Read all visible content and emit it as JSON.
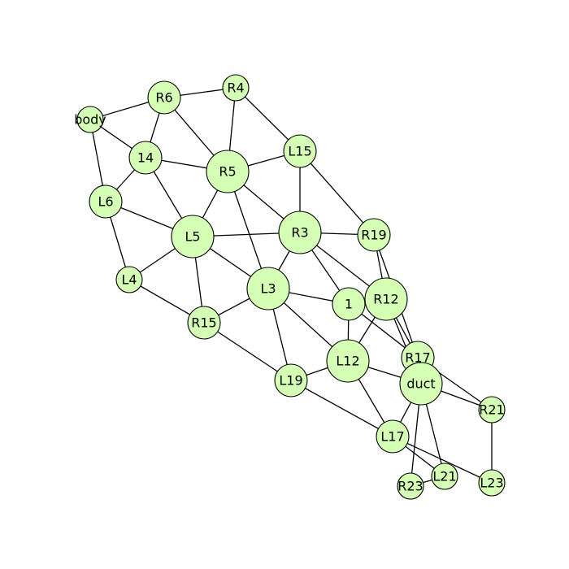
{
  "graph": {
    "node_color": "#d5ffb4",
    "edge_color": "#000000",
    "nodes": [
      {
        "id": "body",
        "label": "body",
        "size": "small"
      },
      {
        "id": "R6",
        "label": "R6",
        "size": "medium"
      },
      {
        "id": "R4",
        "label": "R4",
        "size": "small"
      },
      {
        "id": "14",
        "label": "14",
        "size": "medium"
      },
      {
        "id": "R5",
        "label": "R5",
        "size": "large"
      },
      {
        "id": "L15",
        "label": "L15",
        "size": "medium"
      },
      {
        "id": "L6",
        "label": "L6",
        "size": "medium"
      },
      {
        "id": "L5",
        "label": "L5",
        "size": "large"
      },
      {
        "id": "R3",
        "label": "R3",
        "size": "large"
      },
      {
        "id": "R19",
        "label": "R19",
        "size": "medium"
      },
      {
        "id": "L4",
        "label": "L4",
        "size": "small"
      },
      {
        "id": "L3",
        "label": "L3",
        "size": "large"
      },
      {
        "id": "1",
        "label": "1",
        "size": "medium"
      },
      {
        "id": "R12",
        "label": "R12",
        "size": "large"
      },
      {
        "id": "R15",
        "label": "R15",
        "size": "medium"
      },
      {
        "id": "L12",
        "label": "L12",
        "size": "large"
      },
      {
        "id": "R17",
        "label": "R17",
        "size": "medium"
      },
      {
        "id": "L19",
        "label": "L19",
        "size": "medium"
      },
      {
        "id": "duct",
        "label": "duct",
        "size": "large"
      },
      {
        "id": "R21",
        "label": "R21",
        "size": "small"
      },
      {
        "id": "L17",
        "label": "L17",
        "size": "medium"
      },
      {
        "id": "L21",
        "label": "L21",
        "size": "small"
      },
      {
        "id": "R23",
        "label": "R23",
        "size": "small"
      },
      {
        "id": "L23",
        "label": "L23",
        "size": "small"
      }
    ],
    "edges": [
      [
        "body",
        "R6"
      ],
      [
        "body",
        "14"
      ],
      [
        "body",
        "L6"
      ],
      [
        "R6",
        "R4"
      ],
      [
        "R6",
        "14"
      ],
      [
        "R6",
        "R5"
      ],
      [
        "R4",
        "R5"
      ],
      [
        "R4",
        "L15"
      ],
      [
        "14",
        "L6"
      ],
      [
        "14",
        "R5"
      ],
      [
        "14",
        "L5"
      ],
      [
        "R5",
        "L15"
      ],
      [
        "R5",
        "L5"
      ],
      [
        "R5",
        "R3"
      ],
      [
        "R5",
        "L3"
      ],
      [
        "L15",
        "R3"
      ],
      [
        "L15",
        "R19"
      ],
      [
        "L6",
        "L5"
      ],
      [
        "L6",
        "L4"
      ],
      [
        "L5",
        "R3"
      ],
      [
        "L5",
        "L4"
      ],
      [
        "L5",
        "R15"
      ],
      [
        "L5",
        "L3"
      ],
      [
        "R3",
        "R19"
      ],
      [
        "R3",
        "L3"
      ],
      [
        "R3",
        "1"
      ],
      [
        "R3",
        "R12"
      ],
      [
        "R19",
        "R12"
      ],
      [
        "R19",
        "R17"
      ],
      [
        "L4",
        "R15"
      ],
      [
        "R15",
        "L3"
      ],
      [
        "R15",
        "L19"
      ],
      [
        "L3",
        "1"
      ],
      [
        "L3",
        "L19"
      ],
      [
        "L3",
        "L12"
      ],
      [
        "1",
        "R12"
      ],
      [
        "1",
        "L12"
      ],
      [
        "1",
        "R17"
      ],
      [
        "R12",
        "L12"
      ],
      [
        "R12",
        "R17"
      ],
      [
        "R12",
        "duct"
      ],
      [
        "L12",
        "L19"
      ],
      [
        "L12",
        "duct"
      ],
      [
        "L12",
        "L17"
      ],
      [
        "L19",
        "L17"
      ],
      [
        "R17",
        "duct"
      ],
      [
        "R17",
        "R21"
      ],
      [
        "duct",
        "R21"
      ],
      [
        "duct",
        "L17"
      ],
      [
        "duct",
        "L21"
      ],
      [
        "duct",
        "R23"
      ],
      [
        "R21",
        "L23"
      ],
      [
        "L17",
        "L21"
      ],
      [
        "L17",
        "L23"
      ],
      [
        "L21",
        "R23"
      ]
    ]
  }
}
